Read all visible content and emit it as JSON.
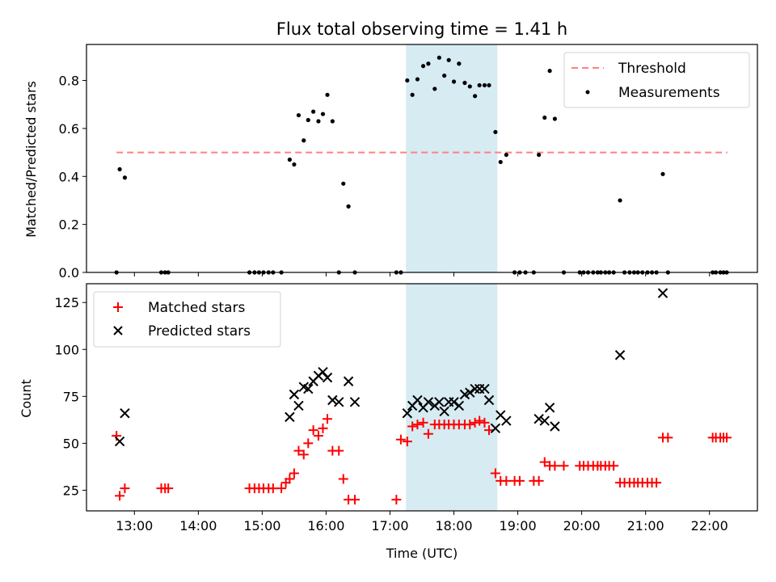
{
  "chart_data": {
    "title": "Flux total observing time = 1.41 h",
    "xlabel": "Time (UTC)",
    "x_unit": "hours UTC",
    "xlim": [
      12.25,
      22.75
    ],
    "xticks": [
      13,
      14,
      15,
      16,
      17,
      18,
      19,
      20,
      21,
      22
    ],
    "xtick_labels": [
      "13:00",
      "14:00",
      "15:00",
      "16:00",
      "17:00",
      "18:00",
      "19:00",
      "20:00",
      "21:00",
      "22:00"
    ],
    "highlight_span": [
      17.25,
      18.68
    ],
    "highlight_color": "#add8e6",
    "panels": [
      {
        "type": "scatter",
        "ylabel": "Matched/Predicted stars",
        "ylim": [
          0,
          0.95
        ],
        "yticks": [
          0.0,
          0.2,
          0.4,
          0.6,
          0.8
        ],
        "ytick_labels": [
          "0.0",
          "0.2",
          "0.4",
          "0.6",
          "0.8"
        ],
        "legend_position": "upper right",
        "threshold": {
          "name": "Threshold",
          "value": 0.5,
          "x_range": [
            12.72,
            22.28
          ],
          "color": "#ff8080",
          "style": "dashed"
        },
        "series": [
          {
            "name": "Measurements",
            "marker": "dot",
            "color": "#000000",
            "x": [
              12.72,
              12.77,
              12.85,
              13.42,
              13.48,
              13.53,
              14.8,
              14.88,
              14.95,
              15.02,
              15.1,
              15.17,
              15.3,
              15.43,
              15.5,
              15.57,
              15.65,
              15.72,
              15.8,
              15.88,
              15.95,
              16.02,
              16.1,
              16.2,
              16.27,
              16.35,
              16.45,
              17.1,
              17.17,
              17.27,
              17.35,
              17.43,
              17.52,
              17.6,
              17.7,
              17.77,
              17.85,
              17.92,
              18.0,
              18.08,
              18.17,
              18.25,
              18.33,
              18.4,
              18.48,
              18.55,
              18.65,
              18.73,
              18.82,
              18.95,
              19.03,
              19.12,
              19.25,
              19.33,
              19.42,
              19.5,
              19.58,
              19.72,
              19.97,
              20.03,
              20.1,
              20.18,
              20.25,
              20.3,
              20.37,
              20.43,
              20.5,
              20.6,
              20.67,
              20.75,
              20.82,
              20.88,
              20.95,
              21.03,
              21.1,
              21.17,
              21.27,
              21.35,
              22.05,
              22.1,
              22.17,
              22.22,
              22.27
            ],
            "y": [
              0.0,
              0.43,
              0.395,
              0.0,
              0.0,
              0.0,
              0.0,
              0.0,
              0.0,
              0.0,
              0.0,
              0.0,
              0.0,
              0.47,
              0.45,
              0.655,
              0.55,
              0.635,
              0.67,
              0.63,
              0.66,
              0.74,
              0.63,
              0.0,
              0.37,
              0.275,
              0.0,
              0.0,
              0.0,
              0.8,
              0.74,
              0.805,
              0.86,
              0.87,
              0.765,
              0.895,
              0.82,
              0.885,
              0.795,
              0.87,
              0.79,
              0.775,
              0.735,
              0.78,
              0.78,
              0.78,
              0.585,
              0.46,
              0.49,
              0.0,
              0.0,
              0.0,
              0.0,
              0.49,
              0.645,
              0.84,
              0.64,
              0.0,
              0.0,
              0.0,
              0.0,
              0.0,
              0.0,
              0.0,
              0.0,
              0.0,
              0.0,
              0.3,
              0.0,
              0.0,
              0.0,
              0.0,
              0.0,
              0.0,
              0.0,
              0.0,
              0.41,
              0.0,
              0.0,
              0.0,
              0.0,
              0.0,
              0.0
            ]
          }
        ]
      },
      {
        "type": "scatter",
        "ylabel": "Count",
        "ylim": [
          14,
          135
        ],
        "yticks": [
          25,
          50,
          75,
          100,
          125
        ],
        "ytick_labels": [
          "25",
          "50",
          "75",
          "100",
          "125"
        ],
        "legend_position": "upper left",
        "series": [
          {
            "name": "Matched stars",
            "marker": "plus",
            "color": "#ff0000",
            "x": [
              12.72,
              12.77,
              12.85,
              13.42,
              13.48,
              13.53,
              14.8,
              14.88,
              14.95,
              15.02,
              15.1,
              15.17,
              15.3,
              15.37,
              15.43,
              15.5,
              15.57,
              15.65,
              15.72,
              15.8,
              15.88,
              15.95,
              16.02,
              16.1,
              16.2,
              16.27,
              16.35,
              16.45,
              17.1,
              17.17,
              17.27,
              17.35,
              17.43,
              17.52,
              17.6,
              17.7,
              17.77,
              17.85,
              17.92,
              18.0,
              18.08,
              18.17,
              18.25,
              18.33,
              18.4,
              18.48,
              18.55,
              18.65,
              18.73,
              18.82,
              18.95,
              19.03,
              19.25,
              19.33,
              19.42,
              19.5,
              19.58,
              19.72,
              19.97,
              20.03,
              20.1,
              20.18,
              20.25,
              20.3,
              20.37,
              20.43,
              20.5,
              20.6,
              20.67,
              20.75,
              20.82,
              20.88,
              20.95,
              21.03,
              21.1,
              21.17,
              21.27,
              21.35,
              22.05,
              22.1,
              22.17,
              22.22,
              22.27
            ],
            "y": [
              54,
              22,
              26,
              26,
              26,
              26,
              26,
              26,
              26,
              26,
              26,
              26,
              26,
              29,
              31,
              34,
              46,
              44,
              50,
              57,
              54,
              58,
              63,
              46,
              46,
              31,
              20,
              20,
              20,
              52,
              51,
              59,
              60,
              61,
              55,
              60,
              60,
              60,
              60,
              60,
              60,
              60,
              60,
              61,
              62,
              61,
              57,
              34,
              30,
              30,
              30,
              30,
              30,
              30,
              40,
              38,
              38,
              38,
              38,
              38,
              38,
              38,
              38,
              38,
              38,
              38,
              38,
              29,
              29,
              29,
              29,
              29,
              29,
              29,
              29,
              29,
              53,
              53,
              53,
              53,
              53,
              53,
              53
            ]
          },
          {
            "name": "Predicted stars",
            "marker": "x",
            "color": "#000000",
            "x": [
              12.77,
              12.85,
              15.43,
              15.5,
              15.57,
              15.65,
              15.72,
              15.8,
              15.88,
              15.95,
              16.02,
              16.1,
              16.2,
              16.35,
              16.45,
              17.27,
              17.35,
              17.43,
              17.52,
              17.6,
              17.7,
              17.77,
              17.85,
              17.92,
              18.0,
              18.08,
              18.17,
              18.25,
              18.33,
              18.4,
              18.48,
              18.55,
              18.65,
              18.73,
              18.82,
              19.33,
              19.42,
              19.5,
              19.58,
              20.6,
              21.27
            ],
            "y": [
              51,
              66,
              64,
              76,
              70,
              80,
              79,
              83,
              86,
              88,
              85,
              73,
              72,
              83,
              72,
              66,
              70,
              73,
              69,
              72,
              70,
              72,
              67,
              72,
              72,
              70,
              76,
              77,
              79,
              79,
              79,
              73,
              58,
              65,
              62,
              63,
              62,
              69,
              59,
              97,
              130
            ]
          }
        ]
      }
    ]
  }
}
